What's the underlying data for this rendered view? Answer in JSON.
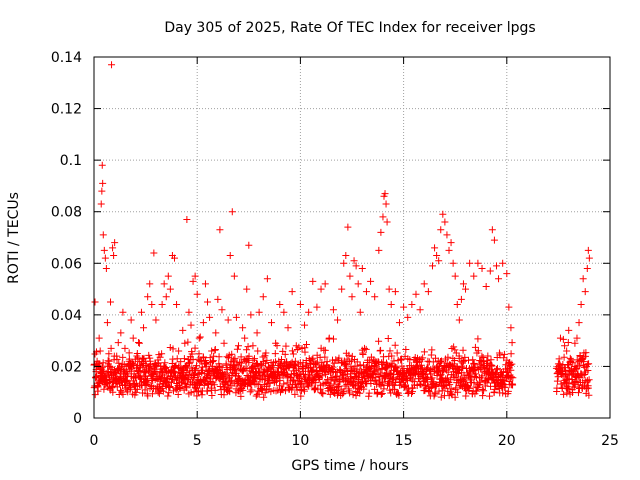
{
  "chart_data": {
    "type": "scatter",
    "title": "Day 305 of 2025, Rate Of TEC Index for receiver lpgs",
    "xlabel": "GPS time / hours",
    "ylabel": "ROTI / TECUs",
    "xlim": [
      0,
      25
    ],
    "ylim": [
      0,
      0.14
    ],
    "xticks": [
      0,
      5,
      10,
      15,
      20,
      25
    ],
    "xtick_labels": [
      "0",
      "5",
      "10",
      "15",
      "20",
      "25"
    ],
    "yticks": [
      0,
      0.02,
      0.04,
      0.06,
      0.08,
      0.1,
      0.12,
      0.14
    ],
    "ytick_labels": [
      "0",
      "0.02",
      "0.04",
      "0.06",
      "0.08",
      "0.1",
      "0.12",
      "0.14"
    ],
    "grid": true,
    "marker": "+",
    "series": [
      {
        "name": "ROTI",
        "color": "#ff0000",
        "data_gap_hours": [
          20.3,
          22.4
        ],
        "points": [
          [
            0.05,
            0.045
          ],
          [
            0.1,
            0.018
          ],
          [
            0.15,
            0.022
          ],
          [
            0.2,
            0.012
          ],
          [
            0.25,
            0.031
          ],
          [
            0.3,
            0.026
          ],
          [
            0.35,
            0.083
          ],
          [
            0.38,
            0.088
          ],
          [
            0.4,
            0.098
          ],
          [
            0.42,
            0.091
          ],
          [
            0.45,
            0.071
          ],
          [
            0.5,
            0.065
          ],
          [
            0.55,
            0.062
          ],
          [
            0.6,
            0.058
          ],
          [
            0.65,
            0.037
          ],
          [
            0.7,
            0.021
          ],
          [
            0.75,
            0.015
          ],
          [
            0.8,
            0.045
          ],
          [
            0.85,
            0.137
          ],
          [
            0.9,
            0.066
          ],
          [
            0.95,
            0.063
          ],
          [
            1.0,
            0.068
          ],
          [
            1.1,
            0.024
          ],
          [
            1.2,
            0.019
          ],
          [
            1.3,
            0.033
          ],
          [
            1.4,
            0.041
          ],
          [
            1.5,
            0.027
          ],
          [
            1.6,
            0.014
          ],
          [
            1.7,
            0.022
          ],
          [
            1.8,
            0.038
          ],
          [
            1.9,
            0.031
          ],
          [
            2.0,
            0.016
          ],
          [
            2.1,
            0.025
          ],
          [
            2.2,
            0.029
          ],
          [
            2.3,
            0.041
          ],
          [
            2.4,
            0.035
          ],
          [
            2.5,
            0.022
          ],
          [
            2.6,
            0.047
          ],
          [
            2.7,
            0.052
          ],
          [
            2.8,
            0.044
          ],
          [
            2.9,
            0.064
          ],
          [
            3.0,
            0.038
          ],
          [
            3.1,
            0.021
          ],
          [
            3.2,
            0.018
          ],
          [
            3.3,
            0.044
          ],
          [
            3.4,
            0.052
          ],
          [
            3.5,
            0.047
          ],
          [
            3.6,
            0.055
          ],
          [
            3.7,
            0.05
          ],
          [
            3.8,
            0.063
          ],
          [
            3.9,
            0.062
          ],
          [
            4.0,
            0.044
          ],
          [
            4.1,
            0.026
          ],
          [
            4.2,
            0.019
          ],
          [
            4.3,
            0.034
          ],
          [
            4.4,
            0.029
          ],
          [
            4.5,
            0.077
          ],
          [
            4.6,
            0.041
          ],
          [
            4.7,
            0.036
          ],
          [
            4.8,
            0.053
          ],
          [
            4.9,
            0.055
          ],
          [
            5.0,
            0.048
          ],
          [
            5.1,
            0.031
          ],
          [
            5.2,
            0.022
          ],
          [
            5.3,
            0.037
          ],
          [
            5.4,
            0.052
          ],
          [
            5.5,
            0.045
          ],
          [
            5.6,
            0.039
          ],
          [
            5.7,
            0.026
          ],
          [
            5.8,
            0.018
          ],
          [
            5.9,
            0.033
          ],
          [
            6.0,
            0.046
          ],
          [
            6.1,
            0.073
          ],
          [
            6.2,
            0.042
          ],
          [
            6.3,
            0.029
          ],
          [
            6.4,
            0.021
          ],
          [
            6.5,
            0.038
          ],
          [
            6.6,
            0.063
          ],
          [
            6.7,
            0.08
          ],
          [
            6.8,
            0.055
          ],
          [
            6.9,
            0.039
          ],
          [
            7.0,
            0.028
          ],
          [
            7.1,
            0.019
          ],
          [
            7.2,
            0.035
          ],
          [
            7.3,
            0.031
          ],
          [
            7.4,
            0.05
          ],
          [
            7.5,
            0.067
          ],
          [
            7.6,
            0.04
          ],
          [
            7.7,
            0.028
          ],
          [
            7.8,
            0.02
          ],
          [
            7.9,
            0.033
          ],
          [
            8.0,
            0.041
          ],
          [
            8.2,
            0.047
          ],
          [
            8.4,
            0.054
          ],
          [
            8.6,
            0.037
          ],
          [
            8.8,
            0.029
          ],
          [
            9.0,
            0.044
          ],
          [
            9.2,
            0.041
          ],
          [
            9.4,
            0.035
          ],
          [
            9.6,
            0.049
          ],
          [
            9.8,
            0.028
          ],
          [
            10.0,
            0.044
          ],
          [
            10.2,
            0.036
          ],
          [
            10.4,
            0.041
          ],
          [
            10.6,
            0.053
          ],
          [
            10.8,
            0.043
          ],
          [
            11.0,
            0.05
          ],
          [
            11.2,
            0.052
          ],
          [
            11.4,
            0.031
          ],
          [
            11.6,
            0.042
          ],
          [
            11.8,
            0.038
          ],
          [
            12.0,
            0.05
          ],
          [
            12.1,
            0.06
          ],
          [
            12.2,
            0.063
          ],
          [
            12.3,
            0.074
          ],
          [
            12.4,
            0.055
          ],
          [
            12.5,
            0.047
          ],
          [
            12.6,
            0.061
          ],
          [
            12.7,
            0.059
          ],
          [
            12.8,
            0.052
          ],
          [
            12.9,
            0.041
          ],
          [
            13.0,
            0.058
          ],
          [
            13.2,
            0.049
          ],
          [
            13.4,
            0.053
          ],
          [
            13.6,
            0.047
          ],
          [
            13.8,
            0.065
          ],
          [
            13.9,
            0.072
          ],
          [
            14.0,
            0.078
          ],
          [
            14.05,
            0.086
          ],
          [
            14.1,
            0.087
          ],
          [
            14.15,
            0.083
          ],
          [
            14.2,
            0.076
          ],
          [
            14.3,
            0.05
          ],
          [
            14.4,
            0.044
          ],
          [
            14.6,
            0.049
          ],
          [
            14.8,
            0.037
          ],
          [
            15.0,
            0.043
          ],
          [
            15.2,
            0.039
          ],
          [
            15.4,
            0.044
          ],
          [
            15.6,
            0.048
          ],
          [
            15.8,
            0.042
          ],
          [
            16.0,
            0.052
          ],
          [
            16.2,
            0.049
          ],
          [
            16.4,
            0.059
          ],
          [
            16.5,
            0.066
          ],
          [
            16.6,
            0.063
          ],
          [
            16.7,
            0.061
          ],
          [
            16.8,
            0.073
          ],
          [
            16.9,
            0.079
          ],
          [
            17.0,
            0.076
          ],
          [
            17.1,
            0.071
          ],
          [
            17.2,
            0.065
          ],
          [
            17.3,
            0.068
          ],
          [
            17.4,
            0.06
          ],
          [
            17.5,
            0.055
          ],
          [
            17.6,
            0.044
          ],
          [
            17.7,
            0.038
          ],
          [
            17.8,
            0.046
          ],
          [
            17.9,
            0.052
          ],
          [
            18.0,
            0.05
          ],
          [
            18.2,
            0.06
          ],
          [
            18.4,
            0.055
          ],
          [
            18.6,
            0.06
          ],
          [
            18.8,
            0.058
          ],
          [
            19.0,
            0.051
          ],
          [
            19.2,
            0.057
          ],
          [
            19.3,
            0.073
          ],
          [
            19.4,
            0.069
          ],
          [
            19.5,
            0.059
          ],
          [
            19.6,
            0.054
          ],
          [
            19.8,
            0.06
          ],
          [
            20.0,
            0.056
          ],
          [
            20.1,
            0.043
          ],
          [
            20.2,
            0.035
          ],
          [
            22.5,
            0.021
          ],
          [
            22.6,
            0.031
          ],
          [
            22.7,
            0.018
          ],
          [
            22.8,
            0.028
          ],
          [
            22.9,
            0.026
          ],
          [
            23.0,
            0.034
          ],
          [
            23.1,
            0.022
          ],
          [
            23.2,
            0.017
          ],
          [
            23.3,
            0.029
          ],
          [
            23.4,
            0.031
          ],
          [
            23.5,
            0.037
          ],
          [
            23.6,
            0.044
          ],
          [
            23.7,
            0.054
          ],
          [
            23.8,
            0.049
          ],
          [
            23.9,
            0.058
          ],
          [
            23.95,
            0.065
          ],
          [
            24.0,
            0.062
          ]
        ]
      }
    ]
  }
}
